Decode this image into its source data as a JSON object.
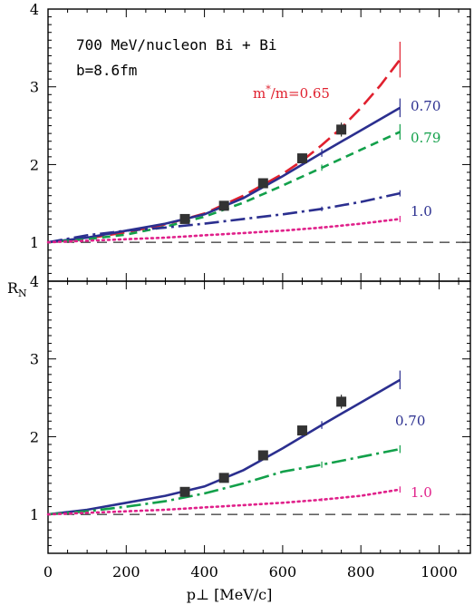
{
  "chart_data": {
    "type": "line",
    "xlabel": "p⊥ [MeV/c]",
    "ylabel": "R",
    "ylabel_sub": "N",
    "xlim": [
      0,
      1080
    ],
    "x_ticks": [
      0,
      200,
      400,
      600,
      800,
      1000
    ],
    "x_tick_labels": [
      "0",
      "200",
      "400",
      "600",
      "800",
      "1000"
    ],
    "colors": {
      "red": "#e0202e",
      "navy": "#2b2f8f",
      "green": "#12a04a",
      "magenta": "#e0208a",
      "black": "#000000"
    },
    "panels": [
      {
        "id": "top",
        "ylim": [
          0.5,
          4
        ],
        "y_ticks": [
          1,
          2,
          3,
          4
        ],
        "y_tick_labels": [
          "1",
          "2",
          "3",
          "4"
        ],
        "annotations": [
          "700 MeV/nucleon Bi + Bi",
          "b=8.6fm"
        ],
        "reference_line": 1.0,
        "data_points": {
          "x": [
            350,
            450,
            550,
            650,
            750
          ],
          "y": [
            1.3,
            1.47,
            1.76,
            2.08,
            2.45
          ],
          "yerr": [
            0.03,
            0.04,
            0.05,
            0.05,
            0.09
          ]
        },
        "series": [
          {
            "name": "m*/m=0.65",
            "label_parts": [
              "m",
              "*",
              "/m=0.65"
            ],
            "color": "red",
            "style": "longdash",
            "x": [
              0,
              100,
              200,
              300,
              400,
              500,
              600,
              650,
              700,
              750,
              800,
              850,
              900
            ],
            "y": [
              1.0,
              1.05,
              1.13,
              1.23,
              1.37,
              1.6,
              1.88,
              2.05,
              2.25,
              2.47,
              2.73,
              3.02,
              3.35
            ],
            "errbar_x": [
              900
            ],
            "errbar_half": [
              0.23
            ]
          },
          {
            "name": "0.70",
            "color": "navy",
            "style": "solid",
            "x": [
              0,
              100,
              200,
              300,
              400,
              500,
              600,
              700,
              800,
              900
            ],
            "y": [
              1.0,
              1.06,
              1.15,
              1.24,
              1.36,
              1.57,
              1.85,
              2.15,
              2.44,
              2.73
            ],
            "errbar_x": [
              700,
              900
            ],
            "errbar_half": [
              0.05,
              0.12
            ]
          },
          {
            "name": "0.79",
            "color": "green",
            "style": "dash",
            "x": [
              0,
              100,
              200,
              300,
              400,
              500,
              600,
              700,
              800,
              900
            ],
            "y": [
              1.0,
              1.04,
              1.1,
              1.2,
              1.33,
              1.51,
              1.73,
              1.96,
              2.19,
              2.42
            ],
            "errbar_x": [
              700,
              900
            ],
            "errbar_half": [
              0.04,
              0.1
            ]
          },
          {
            "name": "1.0",
            "color": "navy",
            "style": "dashdot",
            "x": [
              0,
              100,
              200,
              300,
              400,
              500,
              600,
              700,
              800,
              900
            ],
            "y": [
              1.0,
              1.09,
              1.15,
              1.19,
              1.24,
              1.3,
              1.36,
              1.43,
              1.52,
              1.63
            ],
            "errbar_x": [
              700,
              900
            ],
            "errbar_half": [
              0.03,
              0.04
            ]
          },
          {
            "name": "",
            "color": "magenta",
            "style": "dotted",
            "x": [
              0,
              100,
              200,
              300,
              400,
              500,
              600,
              700,
              800,
              900
            ],
            "y": [
              1.0,
              1.02,
              1.04,
              1.06,
              1.09,
              1.12,
              1.15,
              1.19,
              1.24,
              1.3
            ],
            "errbar_x": [
              700,
              900
            ],
            "errbar_half": [
              0.02,
              0.04
            ]
          }
        ]
      },
      {
        "id": "bottom",
        "ylim": [
          0.5,
          4
        ],
        "y_ticks": [
          1,
          2,
          3,
          4
        ],
        "y_tick_labels": [
          "1",
          "2",
          "3",
          "4"
        ],
        "annotations": [],
        "reference_line": 1.0,
        "data_points": {
          "x": [
            350,
            450,
            550,
            650,
            750
          ],
          "y": [
            1.29,
            1.47,
            1.76,
            2.08,
            2.45
          ],
          "yerr": [
            0.03,
            0.04,
            0.05,
            0.05,
            0.09
          ]
        },
        "series": [
          {
            "name": "0.70",
            "color": "navy",
            "style": "solid",
            "x": [
              0,
              100,
              200,
              300,
              400,
              500,
              600,
              700,
              800,
              900
            ],
            "y": [
              1.0,
              1.06,
              1.15,
              1.24,
              1.36,
              1.57,
              1.85,
              2.15,
              2.44,
              2.73
            ],
            "errbar_x": [
              700,
              900
            ],
            "errbar_half": [
              0.05,
              0.12
            ]
          },
          {
            "name": "",
            "color": "green",
            "style": "dashdot",
            "x": [
              0,
              100,
              200,
              300,
              400,
              500,
              600,
              700,
              800,
              900
            ],
            "y": [
              1.0,
              1.04,
              1.1,
              1.17,
              1.27,
              1.4,
              1.55,
              1.64,
              1.74,
              1.84
            ],
            "errbar_x": [
              700,
              900
            ],
            "errbar_half": [
              0.04,
              0.05
            ]
          },
          {
            "name": "1.0",
            "color": "magenta",
            "style": "dotted",
            "x": [
              0,
              100,
              200,
              300,
              400,
              500,
              600,
              700,
              800,
              900
            ],
            "y": [
              1.0,
              1.02,
              1.04,
              1.06,
              1.09,
              1.12,
              1.15,
              1.19,
              1.24,
              1.32
            ],
            "errbar_x": [
              700,
              900
            ],
            "errbar_half": [
              0.02,
              0.04
            ]
          }
        ]
      }
    ]
  }
}
